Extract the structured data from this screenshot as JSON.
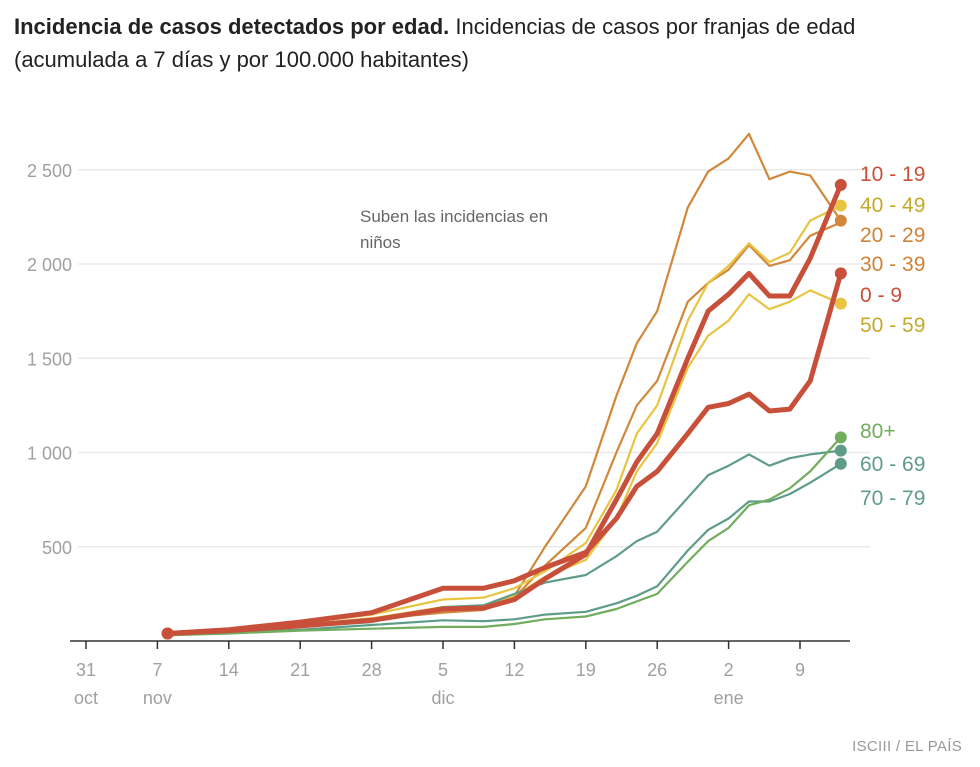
{
  "title": {
    "bold": "Incidencia de casos detectados por edad.",
    "rest": " Incidencias de casos por franjas de edad (acumulada a 7 días y por 100.000 habitantes)"
  },
  "source": "ISCIII / EL PAÍS",
  "chart_data": {
    "type": "line",
    "title": "Incidencia de casos detectados por edad.",
    "annotation": "Suben las incidencias en niños",
    "ylim": [
      0,
      2700
    ],
    "yticks": [
      500,
      1000,
      1500,
      2000,
      2500
    ],
    "ytick_labels": [
      "500",
      "1 000",
      "1 500",
      "2 000",
      "2 500"
    ],
    "xticks": [
      {
        "date": "10-31",
        "day": "31",
        "month": "oct"
      },
      {
        "date": "11-07",
        "day": "7",
        "month": "nov"
      },
      {
        "date": "11-14",
        "day": "14",
        "month": ""
      },
      {
        "date": "11-21",
        "day": "21",
        "month": ""
      },
      {
        "date": "11-28",
        "day": "28",
        "month": ""
      },
      {
        "date": "12-05",
        "day": "5",
        "month": "dic"
      },
      {
        "date": "12-12",
        "day": "12",
        "month": ""
      },
      {
        "date": "12-19",
        "day": "19",
        "month": ""
      },
      {
        "date": "12-26",
        "day": "26",
        "month": ""
      },
      {
        "date": "01-02",
        "day": "2",
        "month": "ene"
      },
      {
        "date": "01-09",
        "day": "9",
        "month": ""
      }
    ],
    "grid": true,
    "x": [
      "11-08",
      "11-14",
      "11-21",
      "11-28",
      "12-05",
      "12-09",
      "12-12",
      "12-15",
      "12-19",
      "12-22",
      "12-24",
      "12-26",
      "12-29",
      "12-31",
      "01-02",
      "01-04",
      "01-06",
      "01-08",
      "01-10",
      "01-13"
    ],
    "series": [
      {
        "name": "20 - 29",
        "color": "#d2883a",
        "label_color": "#cf8236",
        "width": "thin",
        "dot": true,
        "values": [
          40,
          55,
          85,
          120,
          160,
          170,
          240,
          500,
          820,
          1300,
          1580,
          1750,
          2300,
          2490,
          2560,
          2690,
          2450,
          2490,
          2470,
          2230
        ]
      },
      {
        "name": "30 - 39",
        "color": "#d2883a",
        "label_color": "#cf8236",
        "width": "thin",
        "dot": false,
        "values": [
          40,
          55,
          85,
          115,
          150,
          165,
          230,
          400,
          600,
          1000,
          1250,
          1380,
          1800,
          1900,
          1970,
          2100,
          1990,
          2020,
          2150,
          2220
        ]
      },
      {
        "name": "40 - 49",
        "color": "#e8c440",
        "label_color": "#c4aa2c",
        "width": "thin",
        "dot": true,
        "values": [
          40,
          58,
          95,
          140,
          220,
          230,
          280,
          370,
          520,
          800,
          1100,
          1250,
          1700,
          1900,
          1990,
          2110,
          2010,
          2060,
          2230,
          2310
        ]
      },
      {
        "name": "50 - 59",
        "color": "#e8c440",
        "label_color": "#c4aa2c",
        "width": "thin",
        "dot": true,
        "values": [
          40,
          55,
          85,
          120,
          180,
          185,
          240,
          340,
          430,
          650,
          900,
          1050,
          1450,
          1620,
          1700,
          1840,
          1760,
          1800,
          1860,
          1790
        ]
      },
      {
        "name": "60 - 69",
        "color": "#5f9c88",
        "label_color": "#5f9c88",
        "width": "thin",
        "dot": true,
        "values": [
          35,
          50,
          75,
          100,
          180,
          190,
          250,
          310,
          350,
          450,
          530,
          580,
          760,
          880,
          930,
          990,
          930,
          970,
          990,
          1010
        ]
      },
      {
        "name": "70 - 79",
        "color": "#5f9c88",
        "label_color": "#5f9c88",
        "width": "thin",
        "dot": true,
        "values": [
          30,
          45,
          60,
          85,
          110,
          105,
          115,
          140,
          155,
          200,
          240,
          290,
          480,
          590,
          650,
          740,
          740,
          780,
          840,
          940
        ]
      },
      {
        "name": "80+",
        "color": "#72ad5e",
        "label_color": "#72ad5e",
        "width": "thin",
        "dot": true,
        "values": [
          30,
          40,
          55,
          65,
          75,
          75,
          90,
          115,
          130,
          170,
          210,
          250,
          420,
          530,
          600,
          720,
          750,
          810,
          900,
          1080
        ]
      },
      {
        "name": "0 - 9",
        "color": "#c8503a",
        "label_color": "#c8503a",
        "width": "thick",
        "dot": true,
        "values": [
          40,
          60,
          100,
          150,
          280,
          280,
          320,
          390,
          470,
          650,
          820,
          900,
          1100,
          1240,
          1260,
          1310,
          1220,
          1230,
          1380,
          1950
        ]
      },
      {
        "name": "10 - 19",
        "color": "#c8503a",
        "label_color": "#c8503a",
        "width": "thick",
        "dot": true,
        "values": [
          40,
          55,
          80,
          110,
          170,
          175,
          220,
          330,
          460,
          750,
          950,
          1100,
          1500,
          1750,
          1840,
          1950,
          1830,
          1830,
          2030,
          2420
        ]
      }
    ],
    "legend_order": [
      "10 - 19",
      "40 - 49",
      "20 - 29",
      "30 - 39",
      "0 - 9",
      "50 - 59",
      "80+",
      "60 - 69",
      "70 - 79"
    ],
    "legend_placement": "right (direct labels)"
  }
}
